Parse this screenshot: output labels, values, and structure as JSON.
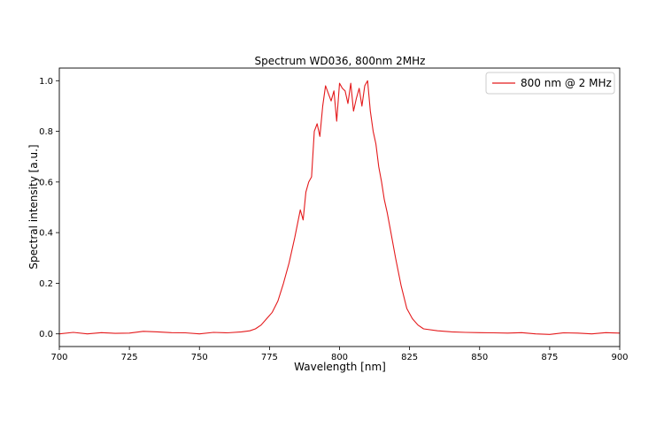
{
  "chart_data": {
    "type": "line",
    "title": "Spectrum WD036, 800nm 2MHz",
    "xlabel": "Wavelength [nm]",
    "ylabel": "Spectral intensity [a.u.]",
    "xlim": [
      700,
      900
    ],
    "ylim": [
      -0.05,
      1.05
    ],
    "xticks": [
      700,
      725,
      750,
      775,
      800,
      825,
      850,
      875,
      900
    ],
    "yticks": [
      0.0,
      0.2,
      0.4,
      0.6,
      0.8,
      1.0
    ],
    "xtick_labels": [
      "700",
      "725",
      "750",
      "775",
      "800",
      "825",
      "850",
      "875",
      "900"
    ],
    "ytick_labels": [
      "0.0",
      "0.2",
      "0.4",
      "0.6",
      "0.8",
      "1.0"
    ],
    "grid": false,
    "legend": {
      "position": "top-right",
      "entries": [
        "800 nm @ 2 MHz"
      ]
    },
    "series": [
      {
        "name": "800 nm @ 2 MHz",
        "color": "#e41a1c",
        "x": [
          700,
          705,
          710,
          715,
          720,
          725,
          730,
          735,
          740,
          745,
          750,
          755,
          760,
          765,
          768,
          770,
          772,
          774,
          776,
          778,
          780,
          782,
          784,
          786,
          787,
          788,
          789,
          790,
          791,
          792,
          793,
          794,
          795,
          796,
          797,
          798,
          799,
          800,
          801,
          802,
          803,
          804,
          805,
          806,
          807,
          808,
          809,
          810,
          811,
          812,
          813,
          814,
          815,
          816,
          817,
          818,
          820,
          822,
          824,
          826,
          828,
          830,
          835,
          840,
          845,
          850,
          855,
          860,
          865,
          870,
          875,
          880,
          885,
          890,
          895,
          900
        ],
        "values": [
          0.0,
          0.006,
          0.0,
          0.005,
          0.002,
          0.003,
          0.01,
          0.008,
          0.005,
          0.004,
          0.0,
          0.006,
          0.004,
          0.008,
          0.012,
          0.02,
          0.035,
          0.06,
          0.085,
          0.13,
          0.2,
          0.28,
          0.38,
          0.49,
          0.45,
          0.56,
          0.6,
          0.62,
          0.8,
          0.83,
          0.78,
          0.9,
          0.98,
          0.95,
          0.92,
          0.96,
          0.84,
          0.99,
          0.97,
          0.96,
          0.91,
          0.99,
          0.88,
          0.93,
          0.97,
          0.9,
          0.98,
          1.0,
          0.88,
          0.8,
          0.75,
          0.66,
          0.6,
          0.53,
          0.48,
          0.42,
          0.3,
          0.19,
          0.1,
          0.06,
          0.035,
          0.02,
          0.012,
          0.008,
          0.006,
          0.005,
          0.004,
          0.003,
          0.005,
          0.0,
          -0.002,
          0.004,
          0.003,
          0.0,
          0.005,
          0.003
        ]
      }
    ]
  }
}
